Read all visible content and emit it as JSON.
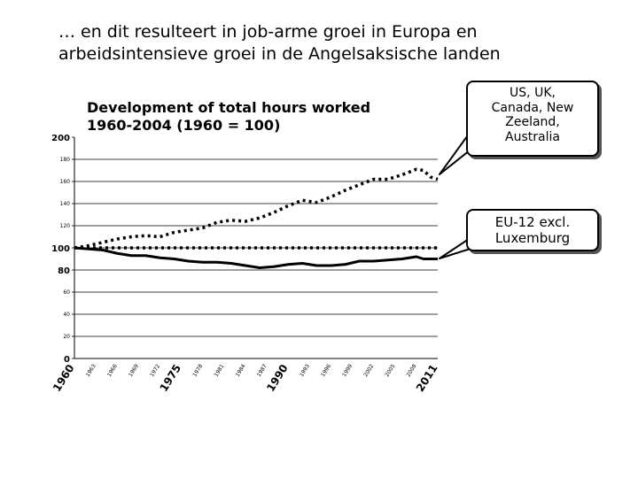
{
  "slide": {
    "title_line1": "… en dit resulteert in job-arme groei in Europa en",
    "title_line2": "arbeidsintensieve groei in de Angelsaksische landen"
  },
  "callouts": {
    "us": [
      "US, UK,",
      "Canada, New",
      "Zeeland,",
      "Australia"
    ],
    "eu": [
      "EU-12 excl.",
      "Luxemburg"
    ]
  },
  "chart_data": {
    "type": "line",
    "title_line1": "Development of total hours worked",
    "title_line2": "1960-2004  (1960 = 100)",
    "ylim": [
      0,
      200
    ],
    "xlim": [
      1960,
      2011
    ],
    "y_ticks": [
      {
        "value": 0,
        "label": "0",
        "size": "big"
      },
      {
        "value": 20,
        "label": "20",
        "size": "small"
      },
      {
        "value": 40,
        "label": "40",
        "size": "small"
      },
      {
        "value": 60,
        "label": "60",
        "size": "small"
      },
      {
        "value": 80,
        "label": "80",
        "size": "big"
      },
      {
        "value": 100,
        "label": "100",
        "size": "big"
      },
      {
        "value": 120,
        "label": "120",
        "size": "small"
      },
      {
        "value": 140,
        "label": "140",
        "size": "small"
      },
      {
        "value": 160,
        "label": "160",
        "size": "small"
      },
      {
        "value": 180,
        "label": "180",
        "size": "small"
      },
      {
        "value": 200,
        "label": "200",
        "size": "big"
      }
    ],
    "gridlines": [
      20,
      40,
      60,
      80,
      100,
      120,
      140,
      160,
      180
    ],
    "x_ticks": [
      {
        "value": 1960,
        "label": "1960",
        "size": "big"
      },
      {
        "value": 1963,
        "label": "1963",
        "size": "small"
      },
      {
        "value": 1966,
        "label": "1966",
        "size": "small"
      },
      {
        "value": 1969,
        "label": "1969",
        "size": "small"
      },
      {
        "value": 1972,
        "label": "1972",
        "size": "small"
      },
      {
        "value": 1975,
        "label": "1975",
        "size": "big"
      },
      {
        "value": 1978,
        "label": "1978",
        "size": "small"
      },
      {
        "value": 1981,
        "label": "1981",
        "size": "small"
      },
      {
        "value": 1984,
        "label": "1984",
        "size": "small"
      },
      {
        "value": 1987,
        "label": "1987",
        "size": "small"
      },
      {
        "value": 1990,
        "label": "1990",
        "size": "big"
      },
      {
        "value": 1993,
        "label": "1993",
        "size": "small"
      },
      {
        "value": 1996,
        "label": "1996",
        "size": "small"
      },
      {
        "value": 1999,
        "label": "1999",
        "size": "small"
      },
      {
        "value": 2002,
        "label": "2002",
        "size": "small"
      },
      {
        "value": 2005,
        "label": "2005",
        "size": "small"
      },
      {
        "value": 2008,
        "label": "2008",
        "size": "small"
      },
      {
        "value": 2011,
        "label": "2011",
        "size": "big"
      }
    ],
    "series": [
      {
        "style": "dotted",
        "x": [
          1960,
          1962,
          1964,
          1966,
          1968,
          1970,
          1972,
          1974,
          1976,
          1978,
          1980,
          1982,
          1984,
          1986,
          1988,
          1990,
          1992,
          1994,
          1996,
          1998,
          2000,
          2002,
          2004,
          2006,
          2008,
          2009,
          2010,
          2011
        ],
        "y": [
          100,
          102,
          105,
          108,
          110,
          111,
          110,
          114,
          116,
          118,
          123,
          125,
          124,
          127,
          132,
          138,
          143,
          141,
          146,
          152,
          157,
          162,
          162,
          166,
          171,
          170,
          164,
          162
        ]
      },
      {
        "style": "dotted",
        "x": [
          1960,
          2011
        ],
        "y": [
          100,
          100
        ]
      },
      {
        "style": "solid",
        "x": [
          1960,
          1962,
          1964,
          1966,
          1968,
          1970,
          1972,
          1974,
          1976,
          1978,
          1980,
          1982,
          1984,
          1986,
          1988,
          1990,
          1992,
          1994,
          1996,
          1998,
          2000,
          2002,
          2004,
          2006,
          2008,
          2009,
          2010,
          2011
        ],
        "y": [
          100,
          99,
          98,
          95,
          93,
          93,
          91,
          90,
          88,
          87,
          87,
          86,
          84,
          82,
          83,
          85,
          86,
          84,
          84,
          85,
          88,
          88,
          89,
          90,
          92,
          90,
          90,
          90
        ]
      }
    ]
  }
}
